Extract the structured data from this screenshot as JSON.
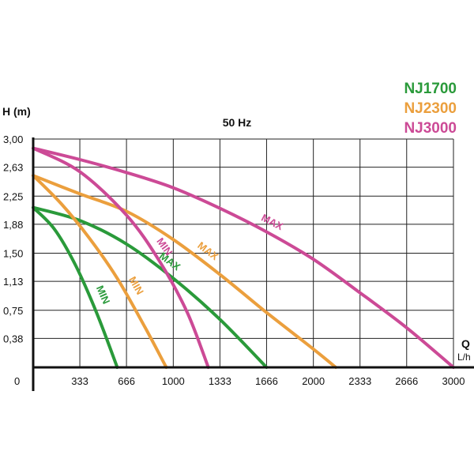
{
  "chart_data": {
    "type": "line",
    "title": "50 Hz",
    "ylabel": "H (m)",
    "xlabel": "Q",
    "xunit": "L/h",
    "origin_label": "0",
    "x_ticks": [
      "333",
      "666",
      "1000",
      "1333",
      "1666",
      "2000",
      "2333",
      "2666",
      "3000"
    ],
    "y_ticks": [
      "0,38",
      "0,75",
      "1,13",
      "1,50",
      "1,88",
      "2,25",
      "2,63",
      "3,00"
    ],
    "xlim": [
      0,
      3000
    ],
    "ylim": [
      0,
      3.0
    ],
    "grid": true,
    "legend_position": "top-right",
    "legend": [
      {
        "name": "NJ1700",
        "color": "#2a9a3a"
      },
      {
        "name": "NJ2300",
        "color": "#eb9f3d"
      },
      {
        "name": "NJ3000",
        "color": "#cc4a96"
      }
    ],
    "series": [
      {
        "name": "NJ1700",
        "label": "MAX",
        "color": "#2a9a3a",
        "x": [
          0,
          333,
          666,
          1000,
          1333,
          1666
        ],
        "y": [
          2.1,
          1.93,
          1.62,
          1.17,
          0.63,
          0.0
        ]
      },
      {
        "name": "NJ1700",
        "label": "MIN",
        "color": "#2a9a3a",
        "x": [
          0,
          150,
          300,
          450,
          600
        ],
        "y": [
          2.1,
          1.82,
          1.35,
          0.73,
          0.0
        ]
      },
      {
        "name": "NJ2300",
        "label": "MAX",
        "color": "#eb9f3d",
        "x": [
          0,
          333,
          666,
          1000,
          1333,
          1666,
          2000,
          2160
        ],
        "y": [
          2.52,
          2.28,
          2.05,
          1.68,
          1.22,
          0.72,
          0.24,
          0.0
        ]
      },
      {
        "name": "NJ2300",
        "label": "MIN",
        "color": "#eb9f3d",
        "x": [
          0,
          200,
          400,
          600,
          800,
          950
        ],
        "y": [
          2.52,
          2.15,
          1.7,
          1.17,
          0.52,
          0.0
        ]
      },
      {
        "name": "NJ3000",
        "label": "MAX",
        "color": "#cc4a96",
        "x": [
          0,
          333,
          666,
          1000,
          1333,
          1666,
          2000,
          2333,
          2666,
          3000
        ],
        "y": [
          2.88,
          2.73,
          2.56,
          2.36,
          2.09,
          1.78,
          1.42,
          0.98,
          0.52,
          0.0
        ]
      },
      {
        "name": "NJ3000",
        "label": "MIN",
        "color": "#cc4a96",
        "x": [
          0,
          333,
          666,
          900,
          1100,
          1250
        ],
        "y": [
          2.88,
          2.57,
          2.0,
          1.4,
          0.72,
          0.0
        ]
      }
    ]
  }
}
